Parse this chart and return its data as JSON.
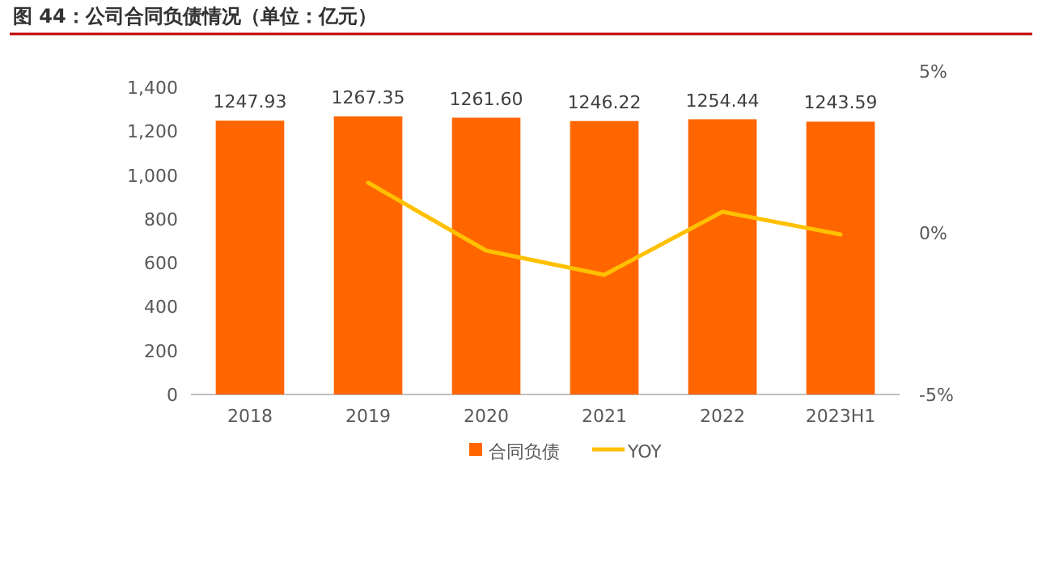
{
  "chart_data": {
    "type": "bar",
    "title": "图 44：公司合同负债情况（单位：亿元）",
    "categories": [
      "2018",
      "2019",
      "2020",
      "2021",
      "2022",
      "2023H1"
    ],
    "series": [
      {
        "name": "合同负债",
        "color": "#ff6600",
        "values": [
          1247.93,
          1267.35,
          1261.6,
          1246.22,
          1254.44,
          1243.59
        ],
        "value_labels": [
          "1247.93",
          "1267.35",
          "1261.60",
          "1246.22",
          "1254.44",
          "1243.59"
        ]
      },
      {
        "name": "YOY",
        "type": "line",
        "axis": "y2",
        "color": "#ffc000",
        "values": [
          null,
          1.55,
          -0.55,
          -1.3,
          0.65,
          -0.05
        ]
      }
    ],
    "ylim": [
      0,
      1400
    ],
    "yticks": [
      {
        "value": 0,
        "label": "0"
      },
      {
        "value": 200,
        "label": "200"
      },
      {
        "value": 400,
        "label": "400"
      },
      {
        "value": 600,
        "label": "600"
      },
      {
        "value": 800,
        "label": "800"
      },
      {
        "value": 1000,
        "label": "1,000"
      },
      {
        "value": 1200,
        "label": "1,200"
      },
      {
        "value": 1400,
        "label": "1,400"
      }
    ],
    "y2lim": [
      -5,
      5
    ],
    "y2ticks": [
      {
        "value": -5,
        "label": "-5%"
      },
      {
        "value": 0,
        "label": "0%"
      },
      {
        "value": 5,
        "label": "5%"
      }
    ],
    "legend": "bottom"
  }
}
